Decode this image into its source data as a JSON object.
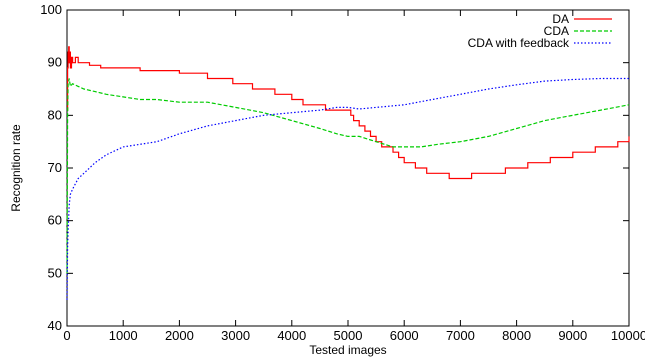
{
  "chart_data": {
    "type": "line",
    "title": "",
    "xlabel": "Tested images",
    "ylabel": "Recognition rate",
    "xlim": [
      0,
      10000
    ],
    "ylim": [
      40,
      100
    ],
    "x_ticks": [
      0,
      1000,
      2000,
      3000,
      4000,
      5000,
      6000,
      7000,
      8000,
      9000,
      10000
    ],
    "y_ticks": [
      40,
      50,
      60,
      70,
      80,
      90,
      100
    ],
    "x_tick_labels": [
      "0",
      "1000",
      "2000",
      "3000",
      "4000",
      "5000",
      "6000",
      "7000",
      "8000",
      "9000",
      "10000"
    ],
    "y_tick_labels": [
      "40",
      "50",
      "60",
      "70",
      "80",
      "90",
      "100"
    ],
    "grid": false,
    "legend_position": "top-right",
    "series": [
      {
        "name": "DA",
        "color": "#ff0000",
        "style": "solid",
        "step": true,
        "x": [
          0,
          10,
          20,
          30,
          40,
          50,
          60,
          80,
          100,
          150,
          200,
          300,
          400,
          500,
          600,
          700,
          1000,
          1300,
          1600,
          2000,
          2500,
          2700,
          2950,
          3300,
          3450,
          3600,
          3700,
          3800,
          4000,
          4200,
          4400,
          4600,
          4800,
          5000,
          5050,
          5100,
          5200,
          5300,
          5400,
          5500,
          5600,
          5700,
          5800,
          5900,
          6000,
          6100,
          6200,
          6300,
          6400,
          6600,
          6800,
          7000,
          7200,
          7400,
          7600,
          7800,
          8000,
          8200,
          8400,
          8600,
          8800,
          9000,
          9200,
          9400,
          9600,
          9800,
          10000
        ],
        "y": [
          81,
          89,
          92,
          93,
          90,
          92,
          89,
          91,
          90,
          91,
          90,
          90,
          89.5,
          89.5,
          89,
          89,
          89,
          88.5,
          88.5,
          88,
          87,
          87,
          86,
          85,
          85,
          85,
          84,
          84,
          83,
          82,
          82,
          81,
          81,
          81,
          80,
          79,
          78,
          77,
          76,
          75,
          74,
          74,
          73,
          72,
          71,
          71,
          70,
          70,
          69,
          69,
          68,
          68,
          69,
          69,
          69,
          70,
          70,
          71,
          71,
          72,
          72,
          73,
          73,
          74,
          74,
          75,
          76
        ]
      },
      {
        "name": "CDA",
        "color": "#00cc00",
        "style": "dashed",
        "x": [
          0,
          10,
          20,
          40,
          60,
          100,
          200,
          300,
          500,
          700,
          1000,
          1300,
          1600,
          2000,
          2500,
          3000,
          3500,
          4000,
          4500,
          4800,
          5000,
          5200,
          5500,
          5800,
          6000,
          6300,
          6600,
          7000,
          7500,
          8000,
          8500,
          9000,
          9500,
          10000
        ],
        "y": [
          50,
          80,
          86,
          87,
          85.5,
          86,
          85.5,
          85,
          84.5,
          84,
          83.5,
          83,
          83,
          82.5,
          82.5,
          81.5,
          80.5,
          79,
          77.5,
          76.5,
          76,
          76,
          75,
          74,
          74,
          74,
          74.5,
          75,
          76,
          77.5,
          79,
          80,
          81,
          82
        ]
      },
      {
        "name": "CDA with feedback",
        "color": "#0000ff",
        "style": "dotted",
        "x": [
          0,
          10,
          20,
          40,
          60,
          100,
          200,
          300,
          400,
          500,
          700,
          1000,
          1300,
          1600,
          2000,
          2500,
          3000,
          3500,
          4000,
          4500,
          4800,
          5000,
          5200,
          5500,
          6000,
          6500,
          7000,
          7500,
          8000,
          8500,
          9000,
          9500,
          10000
        ],
        "y": [
          45,
          55,
          58,
          63,
          65,
          66,
          68,
          69,
          70,
          71,
          72.5,
          74,
          74.5,
          75,
          76.5,
          78,
          79,
          80,
          80.5,
          81,
          81.5,
          81.5,
          81.2,
          81.5,
          82,
          83,
          84,
          85,
          85.8,
          86.5,
          86.8,
          87,
          87
        ]
      }
    ]
  }
}
